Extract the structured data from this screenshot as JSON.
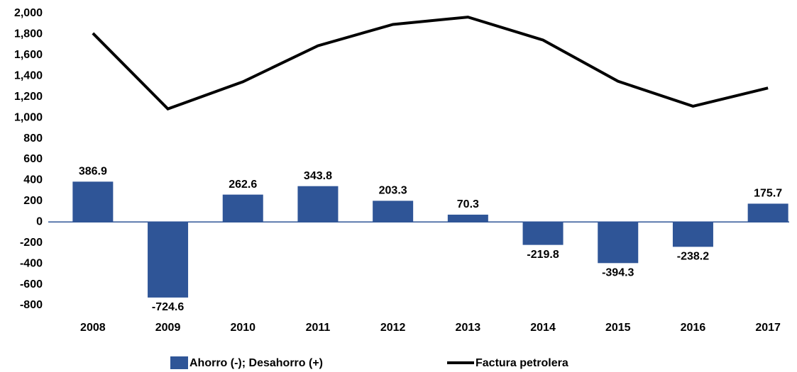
{
  "chart_data": {
    "type": "combo",
    "categories": [
      "2008",
      "2009",
      "2010",
      "2011",
      "2012",
      "2013",
      "2014",
      "2015",
      "2016",
      "2017"
    ],
    "series": [
      {
        "name": "Ahorro (-); Desahorro (+)",
        "type": "bar",
        "color": "#2f5597",
        "values": [
          386.9,
          -724.6,
          262.6,
          343.8,
          203.3,
          70.3,
          -219.8,
          -394.3,
          -238.2,
          175.7
        ]
      },
      {
        "name": "Factura petrolera",
        "type": "line",
        "color": "#000000",
        "values": [
          1810,
          1085,
          1345,
          1690,
          1895,
          1965,
          1745,
          1350,
          1110,
          1285
        ]
      }
    ],
    "ylim": [
      -800,
      2000
    ],
    "yticks": [
      {
        "value": 2000,
        "label": "2,000"
      },
      {
        "value": 1800,
        "label": "1,800"
      },
      {
        "value": 1600,
        "label": "1,600"
      },
      {
        "value": 1400,
        "label": "1,400"
      },
      {
        "value": 1200,
        "label": "1,200"
      },
      {
        "value": 1000,
        "label": "1,000"
      },
      800,
      600,
      400,
      200,
      0,
      -200,
      -400,
      -600,
      -800
    ],
    "legend": "bottom"
  }
}
